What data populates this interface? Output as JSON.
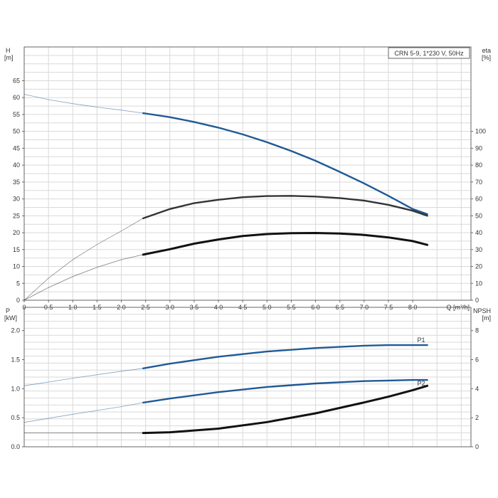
{
  "chart_data": [
    {
      "type": "line",
      "title": "CRN 5-9, 1*230 V, 50Hz",
      "xlabel": "Q [m³/h]",
      "ylabel_left": [
        "H",
        "[m]"
      ],
      "ylabel_right": [
        "eta",
        "[%]"
      ],
      "xlim": [
        0,
        9.2
      ],
      "ylim_left": [
        0,
        75
      ],
      "ylim_right": [
        0,
        150
      ],
      "grid": true,
      "xticks": [
        "0",
        "0.5",
        "1.0",
        "1.5",
        "2.0",
        "2.5",
        "3.0",
        "3.5",
        "4.0",
        "4.5",
        "5.0",
        "5.5",
        "6.0",
        "6.5",
        "7.0",
        "7.5",
        "8.0"
      ],
      "yticks_left": [
        "0",
        "5",
        "10",
        "15",
        "20",
        "25",
        "30",
        "35",
        "40",
        "45",
        "50",
        "55",
        "60",
        "65"
      ],
      "yticks_right": [
        "0",
        "10",
        "20",
        "30",
        "40",
        "50",
        "60",
        "70",
        "80",
        "90",
        "100"
      ],
      "series": [
        {
          "color": "#1f5a96",
          "axis": "left",
          "x": [
            0,
            0.5,
            1.0,
            1.5,
            2.0,
            2.45,
            3.0,
            3.5,
            4.0,
            4.5,
            5.0,
            5.5,
            6.0,
            6.5,
            7.0,
            7.5,
            8.0,
            8.3
          ],
          "values": [
            61.0,
            59.4,
            58.2,
            57.2,
            56.3,
            55.4,
            54.2,
            52.8,
            51.1,
            49.1,
            46.8,
            44.2,
            41.3,
            38.0,
            34.6,
            30.9,
            27.0,
            25.5
          ],
          "solid_from": 2.45
        },
        {
          "color": "#333333",
          "axis": "right",
          "x": [
            0,
            0.5,
            1.0,
            1.5,
            2.0,
            2.45,
            3.0,
            3.5,
            4.0,
            4.5,
            5.0,
            5.5,
            6.0,
            6.5,
            7.0,
            7.5,
            8.0,
            8.3
          ],
          "values": [
            0,
            13,
            24,
            33,
            41,
            48.5,
            54,
            57.5,
            59.5,
            61,
            61.7,
            61.8,
            61.4,
            60.5,
            59,
            56.5,
            53,
            50
          ],
          "solid_from": 2.45
        },
        {
          "color": "#111111",
          "axis": "right",
          "x": [
            0,
            0.5,
            1.0,
            1.5,
            2.0,
            2.45,
            3.0,
            3.5,
            4.0,
            4.5,
            5.0,
            5.5,
            6.0,
            6.5,
            7.0,
            7.5,
            8.0,
            8.3
          ],
          "values": [
            0,
            7.5,
            14,
            19.5,
            24,
            27,
            30.2,
            33.5,
            36,
            38,
            39.2,
            39.7,
            39.8,
            39.5,
            38.7,
            37.2,
            35,
            32.8
          ],
          "solid_from": 2.45
        }
      ]
    },
    {
      "type": "line",
      "xlabel": "",
      "ylabel_left": [
        "P",
        "[kW]"
      ],
      "ylabel_right": [
        "NPSH",
        "[m]"
      ],
      "xlim": [
        0,
        9.2
      ],
      "ylim_left": [
        0,
        2.4
      ],
      "ylim_right": [
        0,
        9.6
      ],
      "grid": true,
      "yticks_left": [
        "0.0",
        "0.5",
        "1.0",
        "1.5",
        "2.0"
      ],
      "yticks_right": [
        "0",
        "2",
        "4",
        "6",
        "8"
      ],
      "series": [
        {
          "name": "P1",
          "color": "#1f5a96",
          "axis": "left",
          "x": [
            0,
            1.0,
            2.0,
            2.45,
            3.0,
            4.0,
            5.0,
            6.0,
            7.0,
            7.5,
            8.0,
            8.3
          ],
          "values": [
            1.05,
            1.18,
            1.3,
            1.35,
            1.43,
            1.55,
            1.64,
            1.7,
            1.74,
            1.75,
            1.75,
            1.75
          ],
          "solid_from": 2.45
        },
        {
          "name": "P2",
          "color": "#1f5a96",
          "axis": "left",
          "x": [
            0,
            1.0,
            2.0,
            2.45,
            3.0,
            4.0,
            5.0,
            6.0,
            7.0,
            7.5,
            8.0,
            8.3
          ],
          "values": [
            0.42,
            0.56,
            0.69,
            0.76,
            0.83,
            0.94,
            1.03,
            1.09,
            1.13,
            1.14,
            1.15,
            1.15
          ],
          "solid_from": 2.45
        },
        {
          "color": "#111111",
          "axis": "right",
          "x": [
            0,
            1.0,
            2.0,
            2.45,
            3.0,
            4.0,
            5.0,
            6.0,
            7.0,
            7.5,
            8.0,
            8.3
          ],
          "values": [
            0.95,
            0.95,
            0.95,
            0.95,
            1.0,
            1.25,
            1.7,
            2.3,
            3.05,
            3.45,
            3.9,
            4.2
          ],
          "solid_from": 2.45
        }
      ]
    }
  ]
}
